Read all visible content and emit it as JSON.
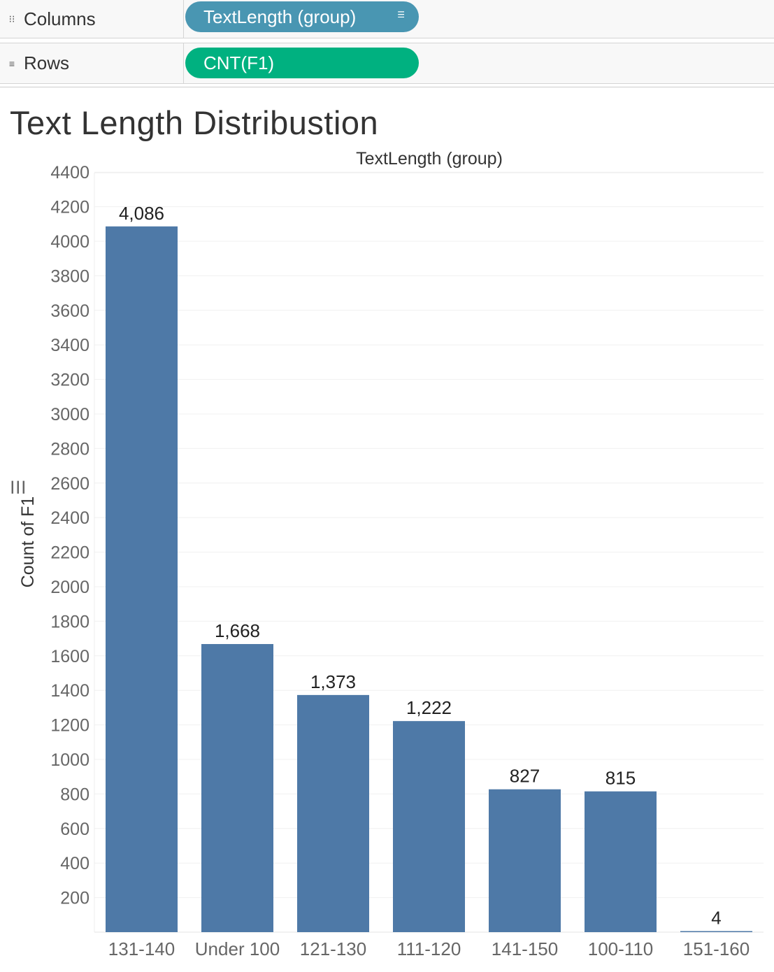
{
  "shelves": {
    "columns": {
      "label": "Columns",
      "icon": "columns-icon",
      "pill": "TextLength (group)",
      "pill_color": "#4996b2"
    },
    "rows": {
      "label": "Rows",
      "icon": "rows-icon",
      "pill": "CNT(F1)",
      "pill_color": "#00b180"
    }
  },
  "sheet": {
    "title": "Text Length Distribustion"
  },
  "chart_data": {
    "type": "bar",
    "title": "Text Length Distribustion",
    "column_header": "TextLength (group)",
    "ylabel": "Count of F1",
    "categories": [
      "131-140",
      "Under 100",
      "121-130",
      "111-120",
      "141-150",
      "100-110",
      "151-160"
    ],
    "values": [
      4086,
      1668,
      1373,
      1222,
      827,
      815,
      4
    ],
    "value_labels": [
      "4,086",
      "1,668",
      "1,373",
      "1,222",
      "827",
      "815",
      "4"
    ],
    "yticks": [
      200,
      400,
      600,
      800,
      1000,
      1200,
      1400,
      1600,
      1800,
      2000,
      2200,
      2400,
      2600,
      2800,
      3000,
      3200,
      3400,
      3600,
      3800,
      4000,
      4200,
      4400
    ],
    "ylim": [
      0,
      4400
    ],
    "bar_color": "#4e79a7",
    "grid": true,
    "legend": "none"
  }
}
